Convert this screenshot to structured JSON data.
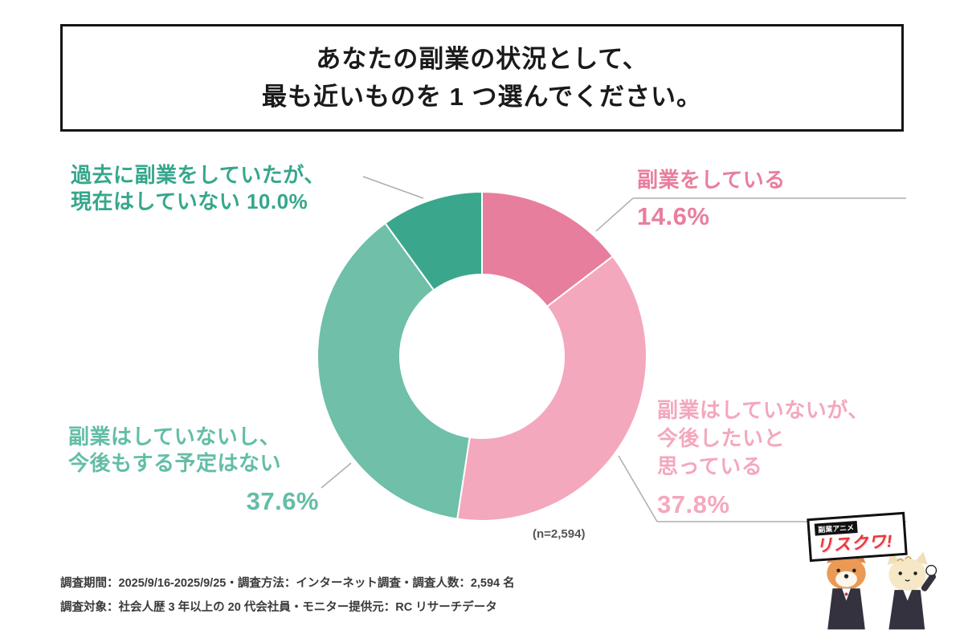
{
  "title": {
    "line1": "あなたの副業の状況として、",
    "line2": "最も近いものを 1 つ選んでください。"
  },
  "chart_data": {
    "type": "pie",
    "subtype": "donut",
    "direction": "clockwise",
    "start_angle_deg": 0,
    "n_label": "(n=2,594)",
    "segments": [
      {
        "label": "副業をしている",
        "value": 14.6,
        "color": "#e87e9d"
      },
      {
        "label": "副業はしていないが、今後したいと思っている",
        "value": 37.8,
        "color": "#f4a8bd"
      },
      {
        "label": "副業はしていないし、今後もする予定はない",
        "value": 37.6,
        "color": "#6fbfa9"
      },
      {
        "label": "過去に副業をしていたが、現在はしていない",
        "value": 10.0,
        "color": "#3aa78c"
      }
    ]
  },
  "labels": {
    "past": {
      "line1": "過去に副業をしていたが、",
      "line2": "現在はしていない",
      "pct": "10.0%",
      "color": "#35a78c"
    },
    "current": {
      "line1": "副業をしている",
      "pct": "14.6%",
      "color": "#e87e9d"
    },
    "future": {
      "line1": "副業はしていないが、",
      "line2": "今後したいと",
      "line3": "思っている",
      "pct": "37.8%",
      "color": "#f4a8bd"
    },
    "never": {
      "line1": "副業はしていないし、",
      "line2": "今後もする予定はない",
      "pct": "37.6%",
      "color": "#63bda7"
    }
  },
  "footer": {
    "line1": "調査期間：2025/9/16-2025/9/25・調査方法：インターネット調査・調査人数：2,594 名",
    "line2": "調査対象：社会人歴 3 年以上の 20 代会社員・モニター提供元：RC リサーチデータ"
  },
  "logo": {
    "small": "副業アニメ",
    "main": "リスクワ!"
  }
}
